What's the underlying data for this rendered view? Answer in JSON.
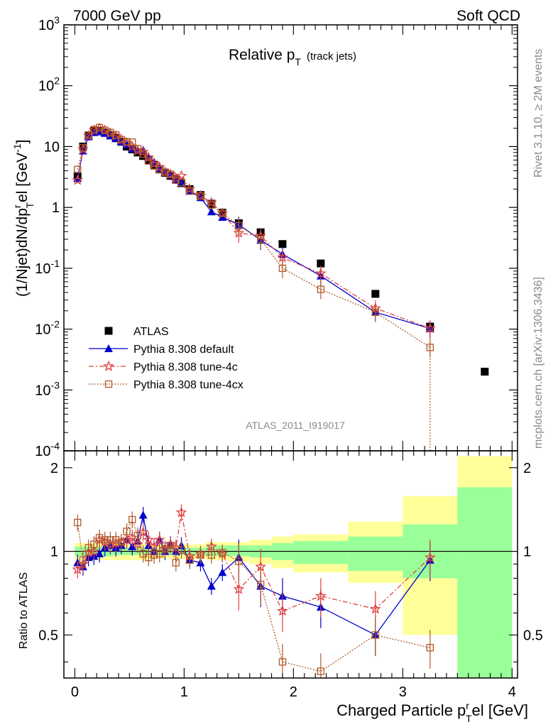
{
  "header": {
    "left": "7000 GeV pp",
    "right": "Soft QCD"
  },
  "side_labels": {
    "top": "Rivet 3.1.10, ≥ 2M events",
    "bottom": "mcplots.cern.ch [arXiv:1306.3436]"
  },
  "chart_data": {
    "type": "scatter",
    "title": "Relative p",
    "title_sub": "T",
    "title_note": "(track jets)",
    "analysis_label": "ATLAS_2011_I919017",
    "xlabel": {
      "text": "Charged Particle p",
      "sub": "T",
      "sup": "r",
      "rest": "el [GeV]"
    },
    "ylabel": {
      "text": "(1/Njet)dN/dp",
      "sup": "r",
      "sub": "T",
      "rest": "el [GeV",
      "unit_sup": "-1",
      "close": "]"
    },
    "ratio_ylabel": "Ratio to ATLAS",
    "xlim": [
      -0.1,
      4.05
    ],
    "ylim": [
      0.0001,
      1000
    ],
    "yscale": "log",
    "ratio_ylim": [
      0.35,
      2.3
    ],
    "x_ticks": [
      "0",
      "1",
      "2",
      "3",
      "4"
    ],
    "y_ticks": [
      "10^-4",
      "10^-3",
      "10^-2",
      "10^-1",
      "1",
      "10",
      "10^2",
      "10^3"
    ],
    "ratio_ticks": [
      "0.5",
      "1",
      "2"
    ],
    "colors": {
      "data": "#000000",
      "default": "#0000cc",
      "tune4c": "#e0403f",
      "tune4cx": "#b05a2a",
      "band_inner": "#99ff99",
      "band_outer": "#ffff99"
    },
    "series": [
      {
        "name": "ATLAS",
        "style": "data",
        "x": [
          0.025,
          0.075,
          0.125,
          0.175,
          0.225,
          0.275,
          0.325,
          0.375,
          0.425,
          0.475,
          0.525,
          0.575,
          0.625,
          0.675,
          0.725,
          0.775,
          0.825,
          0.875,
          0.925,
          0.975,
          1.05,
          1.15,
          1.25,
          1.35,
          1.5,
          1.7,
          1.9,
          2.25,
          2.75,
          3.25,
          3.75
        ],
        "values": [
          3.3,
          10,
          15,
          18,
          18,
          17,
          15.5,
          14,
          12,
          10,
          9,
          8,
          7,
          6,
          5,
          4.2,
          3.7,
          3.3,
          2.9,
          2.5,
          2.0,
          1.6,
          1.15,
          0.82,
          0.55,
          0.39,
          0.25,
          0.12,
          0.038,
          0.011,
          0.002
        ]
      },
      {
        "name": "Pythia 8.308 default",
        "style": "default",
        "x": [
          0.025,
          0.075,
          0.125,
          0.175,
          0.225,
          0.275,
          0.325,
          0.375,
          0.425,
          0.475,
          0.525,
          0.575,
          0.625,
          0.675,
          0.725,
          0.775,
          0.825,
          0.875,
          0.925,
          0.975,
          1.05,
          1.15,
          1.25,
          1.35,
          1.5,
          1.7,
          1.9,
          2.25,
          2.75,
          3.25
        ],
        "values": [
          3.0,
          8.5,
          14.5,
          17,
          17.5,
          16.5,
          15,
          13.5,
          12,
          10.8,
          9.2,
          8.8,
          8.8,
          6.6,
          5.6,
          4.4,
          3.8,
          3.4,
          2.85,
          2.6,
          1.85,
          1.45,
          0.85,
          0.69,
          0.52,
          0.29,
          0.17,
          0.075,
          0.019,
          0.0102
        ],
        "ratio": [
          0.91,
          0.88,
          0.95,
          0.96,
          0.98,
          1.03,
          1.05,
          1.03,
          1.05,
          1.1,
          1.04,
          1.09,
          1.35,
          1.05,
          1.0,
          1.1,
          1.0,
          1.06,
          1.0,
          1.05,
          0.93,
          0.91,
          0.75,
          0.84,
          0.95,
          0.75,
          0.69,
          0.63,
          0.5,
          0.93
        ]
      },
      {
        "name": "Pythia 8.308 tune-4c",
        "style": "tune4c",
        "x": [
          0.025,
          0.075,
          0.125,
          0.175,
          0.225,
          0.275,
          0.325,
          0.375,
          0.425,
          0.475,
          0.525,
          0.575,
          0.625,
          0.675,
          0.725,
          0.775,
          0.825,
          0.875,
          0.925,
          0.975,
          1.05,
          1.15,
          1.25,
          1.35,
          1.5,
          1.7,
          1.9,
          2.25,
          2.75,
          3.25
        ],
        "values": [
          2.8,
          9,
          15,
          18.5,
          20,
          18.5,
          16.5,
          15,
          13,
          11.5,
          10,
          8.5,
          8.2,
          6.6,
          5.2,
          4.6,
          3.8,
          3.5,
          3.0,
          3.3,
          2.0,
          1.55,
          1.2,
          0.8,
          0.38,
          0.34,
          0.15,
          0.082,
          0.022,
          0.0103
        ],
        "ratio": [
          0.86,
          0.9,
          0.99,
          1.0,
          1.1,
          1.08,
          1.06,
          1.07,
          1.08,
          1.1,
          1.12,
          1.06,
          1.17,
          1.1,
          1.04,
          1.1,
          1.02,
          1.06,
          1.03,
          1.38,
          0.96,
          0.98,
          1.04,
          0.98,
          0.73,
          0.88,
          0.61,
          0.69,
          0.62,
          0.95
        ]
      },
      {
        "name": "Pythia 8.308 tune-4cx",
        "style": "tune4cx",
        "x": [
          0.025,
          0.075,
          0.125,
          0.175,
          0.225,
          0.275,
          0.325,
          0.375,
          0.425,
          0.475,
          0.525,
          0.575,
          0.625,
          0.675,
          0.725,
          0.775,
          0.825,
          0.875,
          0.925,
          0.975,
          1.05,
          1.15,
          1.25,
          1.35,
          1.5,
          1.7,
          1.9,
          2.25,
          2.75,
          3.25
        ],
        "values": [
          4.2,
          9.5,
          15.5,
          19,
          20.5,
          18.5,
          17,
          15.5,
          13,
          12,
          11.8,
          9.2,
          7.5,
          5.8,
          4.8,
          4.2,
          3.8,
          3.5,
          2.8,
          2.55,
          1.85,
          1.55,
          1.1,
          0.8,
          0.5,
          0.3,
          0.1,
          0.045,
          0.019,
          0.005
        ],
        "ratio": [
          1.27,
          0.93,
          1.03,
          1.06,
          1.12,
          1.1,
          1.1,
          1.1,
          1.08,
          1.18,
          1.3,
          1.14,
          0.98,
          0.95,
          0.97,
          0.98,
          1.02,
          1.05,
          0.91,
          1.01,
          0.93,
          0.97,
          0.97,
          0.99,
          0.92,
          0.76,
          0.4,
          0.37,
          0.5,
          0.45
        ]
      }
    ],
    "band": [
      {
        "x0": 0.0,
        "x1": 0.35,
        "inner": [
          0.96,
          1.04
        ],
        "outer": [
          0.93,
          1.07
        ]
      },
      {
        "x0": 0.35,
        "x1": 0.7,
        "inner": [
          0.97,
          1.03
        ],
        "outer": [
          0.93,
          1.07
        ]
      },
      {
        "x0": 0.7,
        "x1": 1.0,
        "inner": [
          0.97,
          1.03
        ],
        "outer": [
          0.94,
          1.06
        ]
      },
      {
        "x0": 1.0,
        "x1": 1.2,
        "inner": [
          0.97,
          1.03
        ],
        "outer": [
          0.94,
          1.06
        ]
      },
      {
        "x0": 1.2,
        "x1": 1.4,
        "inner": [
          0.96,
          1.05
        ],
        "outer": [
          0.93,
          1.08
        ]
      },
      {
        "x0": 1.4,
        "x1": 1.6,
        "inner": [
          0.96,
          1.05
        ],
        "outer": [
          0.92,
          1.08
        ]
      },
      {
        "x0": 1.6,
        "x1": 1.8,
        "inner": [
          0.95,
          1.05
        ],
        "outer": [
          0.9,
          1.1
        ]
      },
      {
        "x0": 1.8,
        "x1": 2.0,
        "inner": [
          0.93,
          1.07
        ],
        "outer": [
          0.87,
          1.13
        ]
      },
      {
        "x0": 2.0,
        "x1": 2.5,
        "inner": [
          0.9,
          1.09
        ],
        "outer": [
          0.84,
          1.15
        ]
      },
      {
        "x0": 2.5,
        "x1": 3.0,
        "inner": [
          0.85,
          1.13
        ],
        "outer": [
          0.77,
          1.28
        ]
      },
      {
        "x0": 3.0,
        "x1": 3.5,
        "inner": [
          0.8,
          1.25
        ],
        "outer": [
          0.5,
          1.58
        ]
      },
      {
        "x0": 3.5,
        "x1": 4.0,
        "inner": [
          0.35,
          1.7
        ],
        "outer": [
          0.35,
          2.2
        ]
      }
    ],
    "legend_placement": "bottom-left",
    "grid": false
  }
}
